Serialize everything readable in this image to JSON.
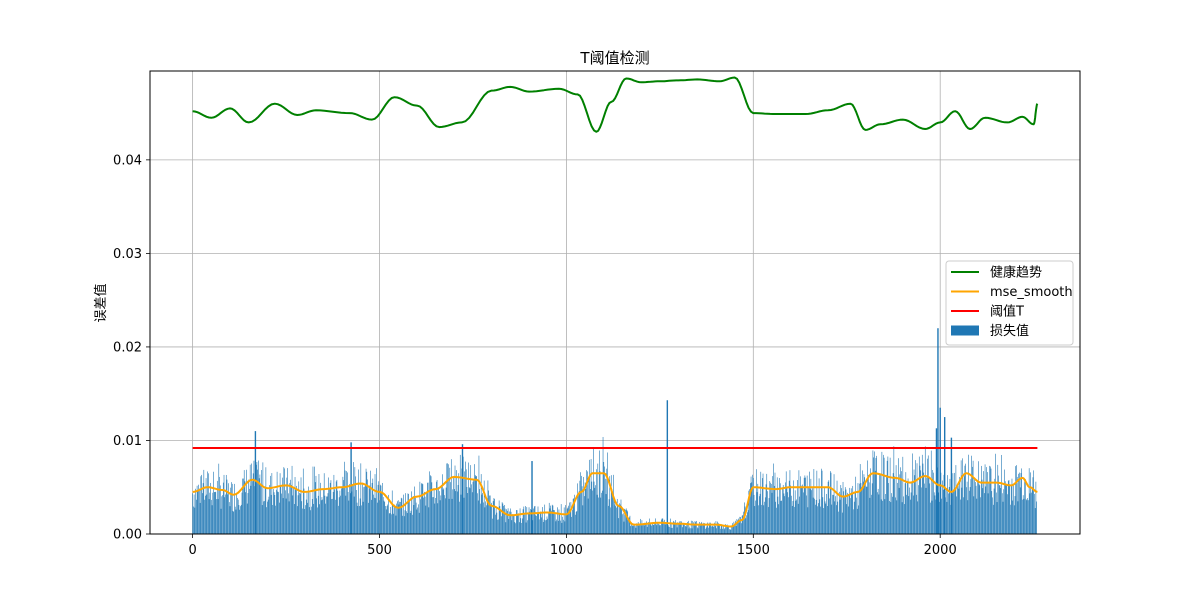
{
  "chart_data": {
    "type": "bar+line",
    "title": "T阈值检测",
    "xlabel": "",
    "ylabel": "误差值",
    "xlim": [
      -114,
      2374
    ],
    "ylim": [
      0,
      0.0495
    ],
    "xticks": [
      0,
      500,
      1000,
      1500,
      2000
    ],
    "xtick_labels": [
      "0",
      "500",
      "1000",
      "1500",
      "2000"
    ],
    "yticks": [
      0,
      0.01,
      0.02,
      0.03,
      0.04
    ],
    "ytick_labels": [
      "0.00",
      "0.01",
      "0.02",
      "0.03",
      "0.04"
    ],
    "grid": true,
    "legend_position": "center-right",
    "x_range": [
      0,
      2260
    ],
    "series": [
      {
        "name": "健康趋势",
        "kind": "line",
        "color": "#008000",
        "x": [
          0,
          50,
          100,
          150,
          220,
          280,
          330,
          420,
          480,
          540,
          600,
          660,
          720,
          800,
          850,
          900,
          980,
          1030,
          1080,
          1120,
          1160,
          1200,
          1250,
          1300,
          1350,
          1410,
          1450,
          1500,
          1560,
          1640,
          1700,
          1760,
          1800,
          1840,
          1900,
          1960,
          2000,
          2040,
          2080,
          2120,
          2180,
          2220,
          2250,
          2260
        ],
        "values": [
          0.0452,
          0.0445,
          0.0455,
          0.044,
          0.046,
          0.0448,
          0.0453,
          0.045,
          0.0443,
          0.0467,
          0.0458,
          0.0435,
          0.044,
          0.0474,
          0.0478,
          0.0473,
          0.0476,
          0.047,
          0.043,
          0.0462,
          0.0487,
          0.0483,
          0.0484,
          0.0485,
          0.0486,
          0.0484,
          0.0488,
          0.045,
          0.0449,
          0.0449,
          0.0453,
          0.046,
          0.0432,
          0.0438,
          0.0443,
          0.0433,
          0.044,
          0.0452,
          0.0433,
          0.0445,
          0.044,
          0.0446,
          0.0438,
          0.046
        ]
      },
      {
        "name": "mse_smooth",
        "kind": "line",
        "color": "#ffa500",
        "x": [
          0,
          40,
          80,
          110,
          160,
          200,
          250,
          300,
          350,
          400,
          450,
          500,
          550,
          600,
          650,
          700,
          760,
          800,
          850,
          900,
          950,
          1000,
          1040,
          1070,
          1100,
          1140,
          1180,
          1250,
          1300,
          1350,
          1400,
          1440,
          1470,
          1500,
          1560,
          1600,
          1650,
          1700,
          1740,
          1780,
          1820,
          1880,
          1920,
          1960,
          2000,
          2030,
          2070,
          2110,
          2150,
          2190,
          2220,
          2240,
          2260
        ],
        "values": [
          0.0045,
          0.005,
          0.0047,
          0.0042,
          0.0058,
          0.0049,
          0.0052,
          0.0045,
          0.0048,
          0.005,
          0.0054,
          0.0045,
          0.0028,
          0.004,
          0.0048,
          0.0061,
          0.0058,
          0.003,
          0.002,
          0.0022,
          0.0023,
          0.0021,
          0.0045,
          0.0065,
          0.0065,
          0.003,
          0.001,
          0.0012,
          0.0011,
          0.001,
          0.001,
          0.0008,
          0.0015,
          0.005,
          0.0048,
          0.005,
          0.005,
          0.005,
          0.004,
          0.0045,
          0.0065,
          0.006,
          0.0055,
          0.0062,
          0.0052,
          0.0045,
          0.0065,
          0.0055,
          0.0055,
          0.0052,
          0.006,
          0.005,
          0.0045
        ]
      },
      {
        "name": "阈值T",
        "kind": "hline",
        "color": "#ff0000",
        "value": 0.0092,
        "x_range": [
          0,
          2260
        ]
      },
      {
        "name": "损失值",
        "kind": "bar",
        "color": "#1f77b4",
        "bar_count": 1130,
        "envelope_x": [
          0,
          40,
          80,
          110,
          160,
          200,
          250,
          300,
          350,
          400,
          450,
          500,
          550,
          600,
          650,
          700,
          760,
          800,
          850,
          900,
          950,
          1000,
          1040,
          1070,
          1100,
          1140,
          1180,
          1250,
          1300,
          1350,
          1400,
          1440,
          1470,
          1500,
          1560,
          1600,
          1650,
          1700,
          1740,
          1780,
          1820,
          1880,
          1920,
          1960,
          2000,
          2030,
          2070,
          2110,
          2150,
          2190,
          2220,
          2240,
          2260
        ],
        "envelope_values": [
          0.0045,
          0.005,
          0.0047,
          0.0042,
          0.0058,
          0.0049,
          0.0052,
          0.0045,
          0.0048,
          0.005,
          0.0054,
          0.0045,
          0.0028,
          0.004,
          0.0048,
          0.0061,
          0.0058,
          0.003,
          0.002,
          0.0022,
          0.0023,
          0.0021,
          0.0045,
          0.0065,
          0.0065,
          0.003,
          0.001,
          0.0012,
          0.0011,
          0.001,
          0.001,
          0.0008,
          0.0015,
          0.005,
          0.0048,
          0.005,
          0.005,
          0.005,
          0.004,
          0.0045,
          0.0065,
          0.006,
          0.0055,
          0.0062,
          0.0052,
          0.0045,
          0.0065,
          0.0055,
          0.0055,
          0.0052,
          0.006,
          0.005,
          0.0045
        ],
        "notable_spikes": [
          {
            "x": 168,
            "value": 0.011
          },
          {
            "x": 424,
            "value": 0.0098
          },
          {
            "x": 722,
            "value": 0.0096
          },
          {
            "x": 908,
            "value": 0.0078
          },
          {
            "x": 1270,
            "value": 0.0143
          },
          {
            "x": 1990,
            "value": 0.0113
          },
          {
            "x": 1994,
            "value": 0.022
          },
          {
            "x": 2000,
            "value": 0.0135
          },
          {
            "x": 2012,
            "value": 0.0125
          },
          {
            "x": 2030,
            "value": 0.0103
          }
        ]
      }
    ]
  }
}
